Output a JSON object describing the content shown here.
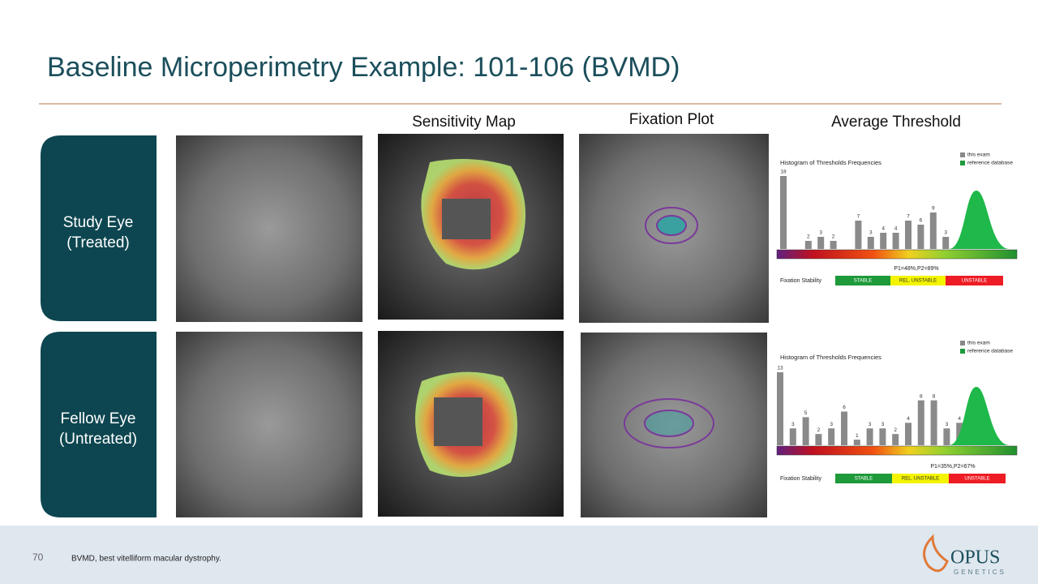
{
  "header": {
    "title": "Baseline Microperimetry Example: 101-106 (BVMD)"
  },
  "columns": [
    "Sensitivity Map",
    "Fixation Plot",
    "Average Threshold"
  ],
  "rows": [
    {
      "label": [
        "Study Eye",
        "(Treated)"
      ],
      "histogram": {
        "title": "Histogram of Thresholds Frequencies",
        "legend": [
          "this exam",
          "reference database"
        ],
        "values": [
          18,
          null,
          2,
          3,
          2,
          null,
          7,
          3,
          4,
          4,
          7,
          6,
          9,
          3
        ],
        "stats": "P1=48%,P2=89%",
        "stability_label": "Fixation Stability",
        "stability": [
          "STABLE",
          "REL. UNSTABLE",
          "UNSTABLE"
        ]
      }
    },
    {
      "label": [
        "Fellow Eye",
        "(Untreated)"
      ],
      "histogram": {
        "title": "Histogram of Thresholds Frequencies",
        "legend": [
          "this exam",
          "reference database"
        ],
        "values": [
          13,
          3,
          5,
          2,
          3,
          6,
          1,
          3,
          3,
          2,
          4,
          8,
          8,
          3,
          4
        ],
        "stats": "P1=35%,P2=67%",
        "stability_label": "Fixation Stability",
        "stability": [
          "STABLE",
          "REL. UNSTABLE",
          "UNSTABLE"
        ]
      }
    }
  ],
  "footer": {
    "page_number": "70",
    "note": "BVMD, best vitelliform macular dystrophy.",
    "logo": "OPUS",
    "logo_sub": "GENETICS"
  }
}
